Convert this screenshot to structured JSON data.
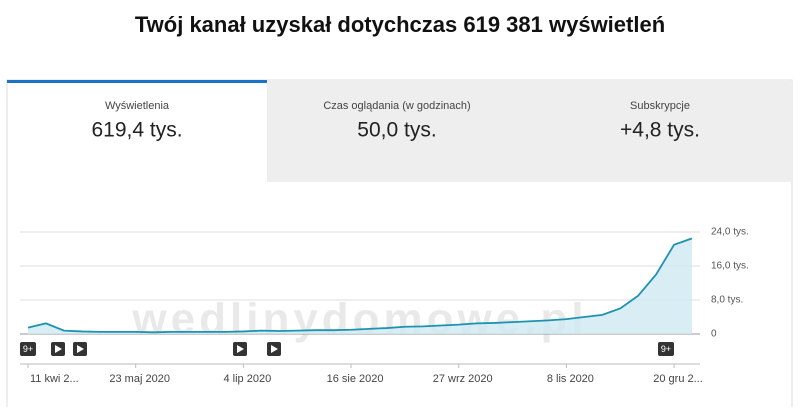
{
  "header": {
    "title": "Twój kanał uzyskał dotychczas 619 381 wyświetleń"
  },
  "tabs": [
    {
      "label": "Wyświetlenia",
      "value": "619,4 tys."
    },
    {
      "label": "Czas oglądania (w godzinach)",
      "value": "50,0 tys."
    },
    {
      "label": "Subskrypcje",
      "value": "+4,8 tys."
    }
  ],
  "watermark": "wedlinydomowe.pl",
  "chart_data": {
    "type": "line",
    "categories": [
      "11 kwi 2...",
      null,
      null,
      null,
      null,
      null,
      "23 maj 2020",
      null,
      null,
      null,
      null,
      null,
      "4 lip 2020",
      null,
      null,
      null,
      null,
      null,
      "16 sie 2020",
      null,
      null,
      null,
      null,
      null,
      "27 wrz 2020",
      null,
      null,
      null,
      null,
      null,
      "8 lis 2020",
      null,
      null,
      null,
      null,
      null,
      "20 gru 2...",
      null
    ],
    "series": [
      {
        "color": "#1e93b0",
        "values": [
          1.5,
          2.5,
          0.8,
          0.6,
          0.5,
          0.5,
          0.5,
          0.4,
          0.5,
          0.5,
          0.5,
          0.5,
          0.6,
          0.8,
          0.7,
          0.8,
          0.9,
          0.9,
          1.0,
          1.2,
          1.4,
          1.7,
          1.8,
          2.0,
          2.2,
          2.5,
          2.6,
          2.8,
          3.0,
          3.2,
          3.5,
          4.0,
          4.5,
          6.0,
          9.0,
          14.0,
          21.0,
          22.5
        ]
      }
    ],
    "ylim": [
      0,
      24
    ],
    "yticks": [
      {
        "value": 0,
        "label": "0"
      },
      {
        "value": 8,
        "label": "8,0 tys."
      },
      {
        "value": 16,
        "label": "16,0 tys."
      },
      {
        "value": 24,
        "label": "24,0 tys."
      }
    ],
    "grid": true,
    "annotations": [
      "9+",
      "9+"
    ]
  }
}
